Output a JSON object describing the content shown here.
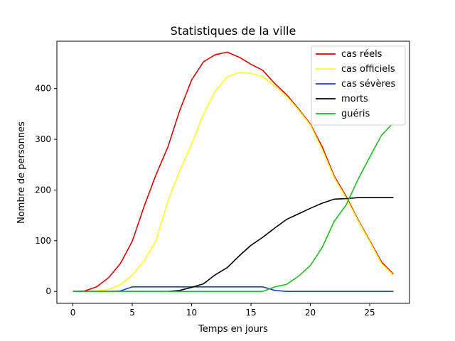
{
  "chart_data": {
    "type": "line",
    "title": "Statistiques de la ville",
    "xlabel": "Temps en jours",
    "ylabel": "Nombre de personnes",
    "xlim": [
      -1.35,
      28.35
    ],
    "ylim": [
      -23.5,
      493.5
    ],
    "x_ticks": [
      0,
      5,
      10,
      15,
      20,
      25
    ],
    "y_ticks": [
      0,
      100,
      200,
      300,
      400
    ],
    "grid": false,
    "legend_position": "top-right",
    "x": [
      0,
      1,
      2,
      3,
      4,
      5,
      6,
      7,
      8,
      9,
      10,
      11,
      12,
      13,
      14,
      15,
      16,
      17,
      18,
      19,
      20,
      21,
      22,
      23,
      24,
      25,
      26,
      27
    ],
    "series": [
      {
        "name": "cas réels",
        "color": "#dd0000",
        "values": [
          0,
          1,
          9,
          27,
          55,
          99,
          168,
          230,
          285,
          357,
          417,
          453,
          467,
          472,
          462,
          448,
          436,
          410,
          388,
          360,
          330,
          285,
          228,
          188,
          142,
          100,
          58,
          34
        ]
      },
      {
        "name": "cas officiels",
        "color": "#ffff22",
        "values": [
          0,
          0,
          1,
          4,
          13,
          32,
          60,
          100,
          178,
          238,
          290,
          350,
          395,
          423,
          432,
          430,
          424,
          405,
          385,
          358,
          328,
          280,
          225,
          185,
          140,
          98,
          55,
          32
        ]
      },
      {
        "name": "cas sévères",
        "color": "#1144bb",
        "values": [
          0,
          0,
          0,
          0,
          1,
          9,
          9,
          9,
          9,
          9,
          9,
          9,
          9,
          9,
          9,
          9,
          9,
          2,
          0,
          0,
          0,
          0,
          0,
          0,
          0,
          0,
          0,
          0
        ]
      },
      {
        "name": "morts",
        "color": "#000000",
        "values": [
          0,
          0,
          0,
          0,
          0,
          0,
          0,
          0,
          0,
          2,
          8,
          15,
          33,
          47,
          70,
          91,
          107,
          125,
          142,
          153,
          164,
          174,
          182,
          183,
          185,
          185,
          185,
          185
        ]
      },
      {
        "name": "guéris",
        "color": "#22bb22",
        "values": [
          0,
          0,
          0,
          0,
          0,
          0,
          0,
          0,
          0,
          0,
          0,
          0,
          0,
          0,
          0,
          0,
          0,
          9,
          14,
          30,
          51,
          87,
          138,
          170,
          220,
          265,
          308,
          333
        ]
      }
    ]
  }
}
